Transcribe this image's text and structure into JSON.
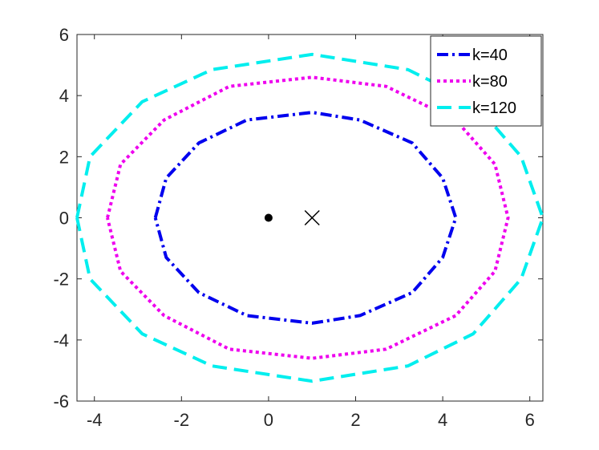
{
  "chart_data": {
    "type": "line",
    "xlim": [
      -4.4,
      6.3
    ],
    "ylim": [
      -6,
      6
    ],
    "xticks": [
      -4,
      -2,
      0,
      2,
      4,
      6
    ],
    "yticks": [
      -6,
      -4,
      -2,
      0,
      2,
      4,
      6
    ],
    "xtick_labels": [
      "-4",
      "-2",
      "0",
      "2",
      "4",
      "6"
    ],
    "ytick_labels": [
      "-6",
      "-4",
      "-2",
      "0",
      "2",
      "4",
      "6"
    ],
    "grid": false,
    "legend_position": "top-right",
    "series": [
      {
        "name": "k=40",
        "color": "#0000ee",
        "style": "dash-dot",
        "x": [
          -2.6,
          -2.35,
          -1.6,
          -0.5,
          1.0,
          2.1,
          3.3,
          4.0,
          4.3,
          4.0,
          3.3,
          2.1,
          1.0,
          -0.5,
          -1.6,
          -2.35,
          -2.6
        ],
        "y": [
          0,
          1.3,
          2.45,
          3.2,
          3.45,
          3.2,
          2.45,
          1.3,
          0,
          -1.3,
          -2.45,
          -3.2,
          -3.45,
          -3.2,
          -2.45,
          -1.3,
          0
        ]
      },
      {
        "name": "k=80",
        "color": "#ee00ee",
        "style": "dotted",
        "x": [
          -3.7,
          -3.4,
          -2.4,
          -0.9,
          1.0,
          2.7,
          4.3,
          5.2,
          5.5,
          5.2,
          4.3,
          2.7,
          1.0,
          -0.9,
          -2.4,
          -3.4,
          -3.7
        ],
        "y": [
          0,
          1.75,
          3.2,
          4.3,
          4.6,
          4.3,
          3.2,
          1.75,
          0,
          -1.75,
          -3.2,
          -4.3,
          -4.6,
          -4.3,
          -3.2,
          -1.75,
          0
        ]
      },
      {
        "name": "k=120",
        "color": "#00eeee",
        "style": "dashed",
        "x": [
          -4.4,
          -4.1,
          -2.9,
          -1.3,
          1.0,
          3.2,
          4.7,
          5.8,
          6.3,
          5.8,
          4.7,
          3.2,
          1.0,
          -1.3,
          -2.9,
          -4.1,
          -4.4
        ],
        "y": [
          0,
          2.0,
          3.8,
          4.85,
          5.35,
          4.85,
          3.8,
          2.0,
          0,
          -2.0,
          -3.8,
          -4.85,
          -5.35,
          -4.85,
          -3.8,
          -2.0,
          0
        ]
      }
    ],
    "markers": [
      {
        "type": "dot",
        "x": 0,
        "y": 0,
        "color": "#000000"
      },
      {
        "type": "cross",
        "x": 1,
        "y": 0,
        "color": "#000000"
      }
    ]
  }
}
